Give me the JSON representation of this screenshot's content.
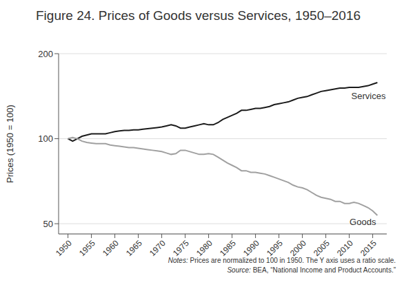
{
  "chart_data": {
    "type": "line",
    "title": "Figure 24. Prices of Goods versus Services, 1950–2016",
    "y_label": "Prices (1950 = 100)",
    "notes": [
      "Notes: Prices are normalized to 100 in 1950. The Y axis uses a ratio scale.",
      "Source: BEA, “National Income and Product Accounts.”"
    ],
    "x": [
      1950,
      1951,
      1952,
      1953,
      1954,
      1955,
      1956,
      1957,
      1958,
      1959,
      1960,
      1961,
      1962,
      1963,
      1964,
      1965,
      1966,
      1967,
      1968,
      1969,
      1970,
      1971,
      1972,
      1973,
      1974,
      1975,
      1976,
      1977,
      1978,
      1979,
      1980,
      1981,
      1982,
      1983,
      1984,
      1985,
      1986,
      1987,
      1988,
      1989,
      1990,
      1991,
      1992,
      1993,
      1994,
      1995,
      1996,
      1997,
      1998,
      1999,
      2000,
      2001,
      2002,
      2003,
      2004,
      2005,
      2006,
      2007,
      2008,
      2009,
      2010,
      2011,
      2012,
      2013,
      2014,
      2015,
      2016
    ],
    "series": [
      {
        "name": "Services",
        "color": "#1a1a1a",
        "values": [
          100,
          98,
          100,
          102,
          103,
          104,
          104,
          104,
          104,
          105,
          106,
          106.5,
          107,
          107,
          107.5,
          107.5,
          108,
          108.5,
          109,
          109.5,
          110,
          111,
          112,
          111,
          109,
          109,
          110,
          111,
          112,
          113,
          112,
          112,
          114,
          117,
          119,
          121,
          123,
          126,
          126,
          127,
          128,
          128,
          129,
          130,
          132,
          133,
          134,
          135,
          137,
          139,
          140,
          141,
          143,
          145,
          147,
          148,
          149,
          150,
          151,
          151,
          152,
          152,
          152,
          153,
          154,
          156,
          158
        ]
      },
      {
        "name": "Goods",
        "color": "#a0a0a0",
        "values": [
          100,
          101,
          100,
          98,
          97,
          96.5,
          96,
          96,
          96,
          95,
          94.5,
          94,
          93.5,
          93,
          93,
          92.5,
          92,
          91.5,
          91,
          90.5,
          90,
          89,
          88,
          88.5,
          91,
          91,
          90,
          89,
          88,
          88,
          88.5,
          88,
          86,
          84,
          82,
          80.5,
          79,
          77,
          77,
          76,
          76,
          75.5,
          75,
          74,
          73,
          72,
          71,
          70,
          68.5,
          67.5,
          67,
          66,
          64.5,
          63,
          62,
          61.5,
          61,
          60,
          60,
          59,
          59,
          59.5,
          59,
          58,
          57,
          55.5,
          53.5
        ]
      }
    ],
    "xlim": [
      1948,
      2018
    ],
    "xticks": [
      1950,
      1955,
      1960,
      1965,
      1970,
      1975,
      1980,
      1985,
      1990,
      1995,
      2000,
      2005,
      2010,
      2015
    ],
    "ylim": [
      46,
      200
    ],
    "yticks": [
      50,
      100,
      200
    ],
    "log": "y",
    "grid": true
  }
}
